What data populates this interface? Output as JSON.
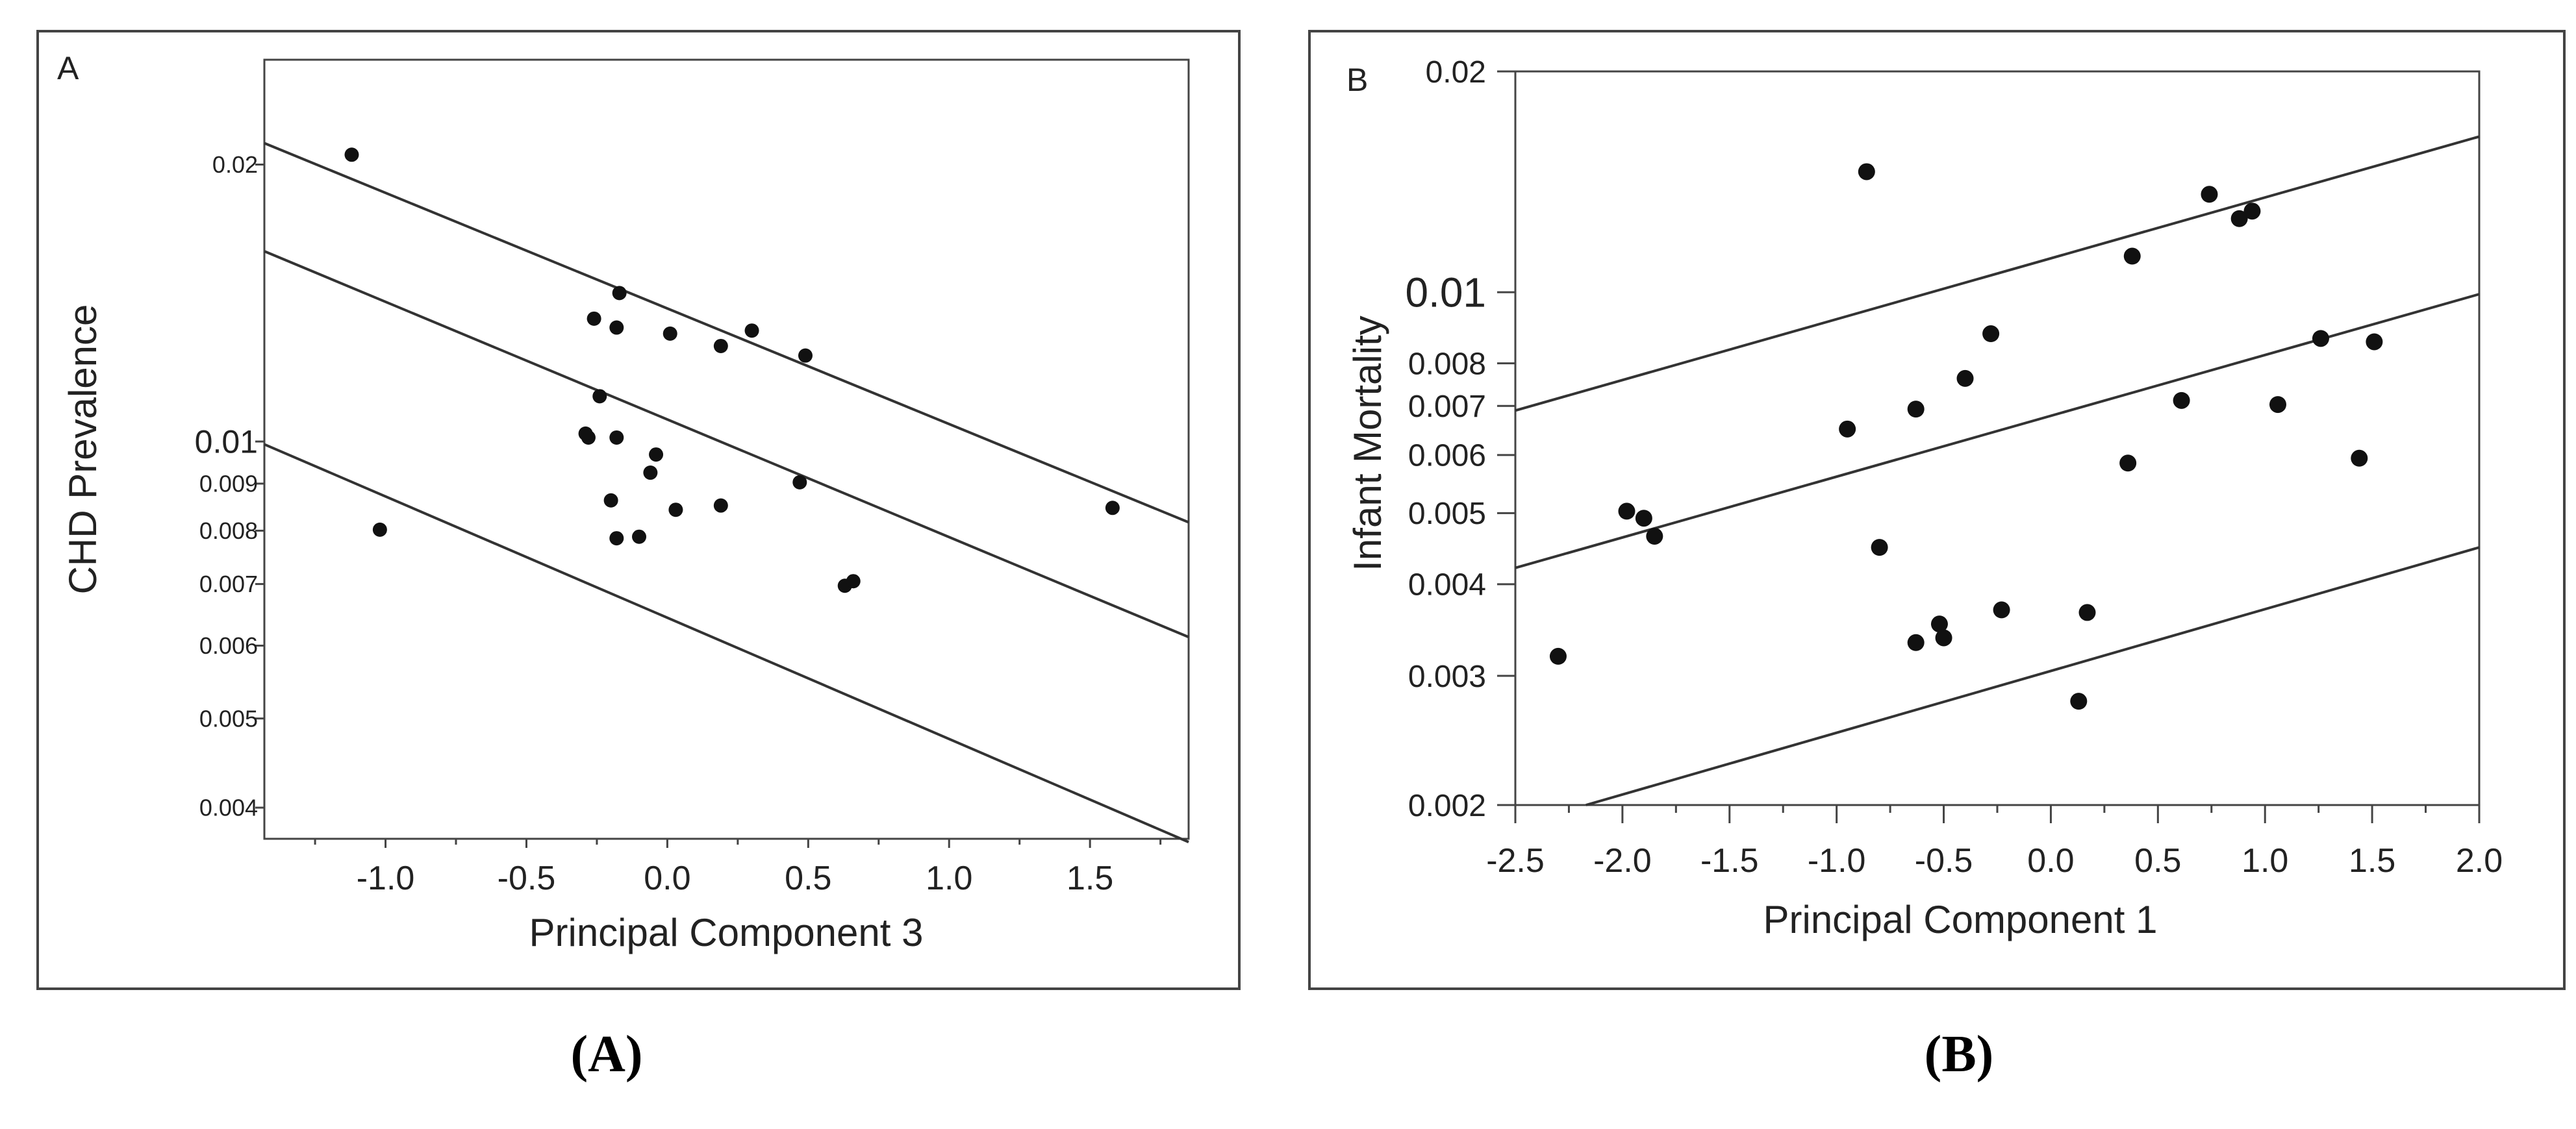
{
  "colors": {
    "ink": "#111111",
    "line": "#333333",
    "frame": "#444444",
    "background": "#ffffff"
  },
  "chart_data": [
    {
      "type": "scatter",
      "panel_letter": "A",
      "caption": "(A)",
      "title": "",
      "xlabel": "Principal Component 3",
      "ylabel": "CHD Prevalence",
      "yscale": "log",
      "xlim": [
        -1.43,
        1.85
      ],
      "ylim": [
        0.0037,
        0.026
      ],
      "xticks": [
        {
          "value": -1.0,
          "label": "-1.0"
        },
        {
          "value": -0.5,
          "label": "-0.5"
        },
        {
          "value": 0.0,
          "label": "0.0"
        },
        {
          "value": 0.5,
          "label": "0.5"
        },
        {
          "value": 1.0,
          "label": "1.0"
        },
        {
          "value": 1.5,
          "label": "1.5"
        }
      ],
      "xminor": [
        -1.25,
        -0.75,
        -0.25,
        0.25,
        0.75,
        1.25,
        1.75
      ],
      "yticks": [
        {
          "value": 0.004,
          "label": "0.004",
          "major": false
        },
        {
          "value": 0.005,
          "label": "0.005",
          "major": false
        },
        {
          "value": 0.006,
          "label": "0.006",
          "major": false
        },
        {
          "value": 0.007,
          "label": "0.007",
          "major": false
        },
        {
          "value": 0.008,
          "label": "0.008",
          "major": false
        },
        {
          "value": 0.009,
          "label": "0.009",
          "major": false
        },
        {
          "value": 0.01,
          "label": "0.01",
          "major": true
        },
        {
          "value": 0.02,
          "label": "0.02",
          "major": false
        }
      ],
      "lines": [
        {
          "name": "upper",
          "x": [
            -1.43,
            1.85
          ],
          "y": [
            0.0211,
            0.00817
          ]
        },
        {
          "name": "fit",
          "x": [
            -1.43,
            1.85
          ],
          "y": [
            0.0161,
            0.00613
          ]
        },
        {
          "name": "lower",
          "x": [
            -1.43,
            1.85
          ],
          "y": [
            0.00993,
            0.00367
          ]
        }
      ],
      "points": [
        {
          "x": -1.12,
          "y": 0.0205
        },
        {
          "x": -1.02,
          "y": 0.00802
        },
        {
          "x": -0.28,
          "y": 0.0101
        },
        {
          "x": -0.29,
          "y": 0.0102
        },
        {
          "x": -0.26,
          "y": 0.0136
        },
        {
          "x": -0.24,
          "y": 0.0112
        },
        {
          "x": -0.2,
          "y": 0.00863
        },
        {
          "x": -0.18,
          "y": 0.0133
        },
        {
          "x": -0.18,
          "y": 0.0101
        },
        {
          "x": -0.18,
          "y": 0.00785
        },
        {
          "x": -0.17,
          "y": 0.0145
        },
        {
          "x": -0.1,
          "y": 0.00788
        },
        {
          "x": -0.06,
          "y": 0.00925
        },
        {
          "x": -0.04,
          "y": 0.00968
        },
        {
          "x": 0.01,
          "y": 0.0131
        },
        {
          "x": 0.03,
          "y": 0.00843
        },
        {
          "x": 0.19,
          "y": 0.0127
        },
        {
          "x": 0.19,
          "y": 0.00852
        },
        {
          "x": 0.3,
          "y": 0.0132
        },
        {
          "x": 0.47,
          "y": 0.00903
        },
        {
          "x": 0.49,
          "y": 0.0124
        },
        {
          "x": 0.63,
          "y": 0.00697
        },
        {
          "x": 0.66,
          "y": 0.00705
        },
        {
          "x": 1.58,
          "y": 0.00847
        }
      ]
    },
    {
      "type": "scatter",
      "panel_letter": "B",
      "caption": "(B)",
      "title": "",
      "xlabel": "Principal Component 1",
      "ylabel": "Infant Mortality",
      "yscale": "log",
      "xlim": [
        -2.5,
        2.0
      ],
      "ylim": [
        0.002,
        0.02
      ],
      "xticks": [
        {
          "value": -2.5,
          "label": "-2.5"
        },
        {
          "value": -2.0,
          "label": "-2.0"
        },
        {
          "value": -1.5,
          "label": "-1.5"
        },
        {
          "value": -1.0,
          "label": "-1.0"
        },
        {
          "value": -0.5,
          "label": "-0.5"
        },
        {
          "value": 0.0,
          "label": "0.0"
        },
        {
          "value": 0.5,
          "label": "0.5"
        },
        {
          "value": 1.0,
          "label": "1.0"
        },
        {
          "value": 1.5,
          "label": "1.5"
        },
        {
          "value": 2.0,
          "label": "2.0"
        }
      ],
      "xminor": [
        -2.25,
        -1.75,
        -1.25,
        -0.75,
        -0.25,
        0.25,
        0.75,
        1.25,
        1.75
      ],
      "yticks": [
        {
          "value": 0.002,
          "label": "0.002",
          "major": false
        },
        {
          "value": 0.003,
          "label": "0.003",
          "major": false
        },
        {
          "value": 0.004,
          "label": "0.004",
          "major": false
        },
        {
          "value": 0.005,
          "label": "0.005",
          "major": false
        },
        {
          "value": 0.006,
          "label": "0.006",
          "major": false
        },
        {
          "value": 0.007,
          "label": "0.007",
          "major": false
        },
        {
          "value": 0.008,
          "label": "0.008",
          "major": false
        },
        {
          "value": 0.01,
          "label": "0.01",
          "major": true
        },
        {
          "value": 0.02,
          "label": "0.02",
          "major": false
        }
      ],
      "lines": [
        {
          "name": "upper",
          "x": [
            -2.5,
            2.0
          ],
          "y": [
            0.0069,
            0.0163
          ]
        },
        {
          "name": "fit",
          "x": [
            -2.5,
            2.0
          ],
          "y": [
            0.00421,
            0.00994
          ]
        },
        {
          "name": "lower",
          "x": [
            -2.17,
            2.0
          ],
          "y": [
            0.002,
            0.00449
          ]
        }
      ],
      "points": [
        {
          "x": -2.3,
          "y": 0.00319
        },
        {
          "x": -1.98,
          "y": 0.00503
        },
        {
          "x": -1.9,
          "y": 0.00492
        },
        {
          "x": -1.85,
          "y": 0.00465
        },
        {
          "x": -0.95,
          "y": 0.00651
        },
        {
          "x": -0.86,
          "y": 0.0146
        },
        {
          "x": -0.8,
          "y": 0.00449
        },
        {
          "x": -0.63,
          "y": 0.00693
        },
        {
          "x": -0.63,
          "y": 0.00333
        },
        {
          "x": -0.52,
          "y": 0.00353
        },
        {
          "x": -0.5,
          "y": 0.00338
        },
        {
          "x": -0.4,
          "y": 0.00763
        },
        {
          "x": -0.28,
          "y": 0.00878
        },
        {
          "x": -0.23,
          "y": 0.00369
        },
        {
          "x": 0.13,
          "y": 0.00277
        },
        {
          "x": 0.17,
          "y": 0.00366
        },
        {
          "x": 0.36,
          "y": 0.00585
        },
        {
          "x": 0.38,
          "y": 0.0112
        },
        {
          "x": 0.61,
          "y": 0.00712
        },
        {
          "x": 0.74,
          "y": 0.0136
        },
        {
          "x": 0.88,
          "y": 0.0126
        },
        {
          "x": 0.94,
          "y": 0.0129
        },
        {
          "x": 1.06,
          "y": 0.00703
        },
        {
          "x": 1.26,
          "y": 0.00865
        },
        {
          "x": 1.44,
          "y": 0.00594
        },
        {
          "x": 1.51,
          "y": 0.00856
        }
      ]
    }
  ]
}
